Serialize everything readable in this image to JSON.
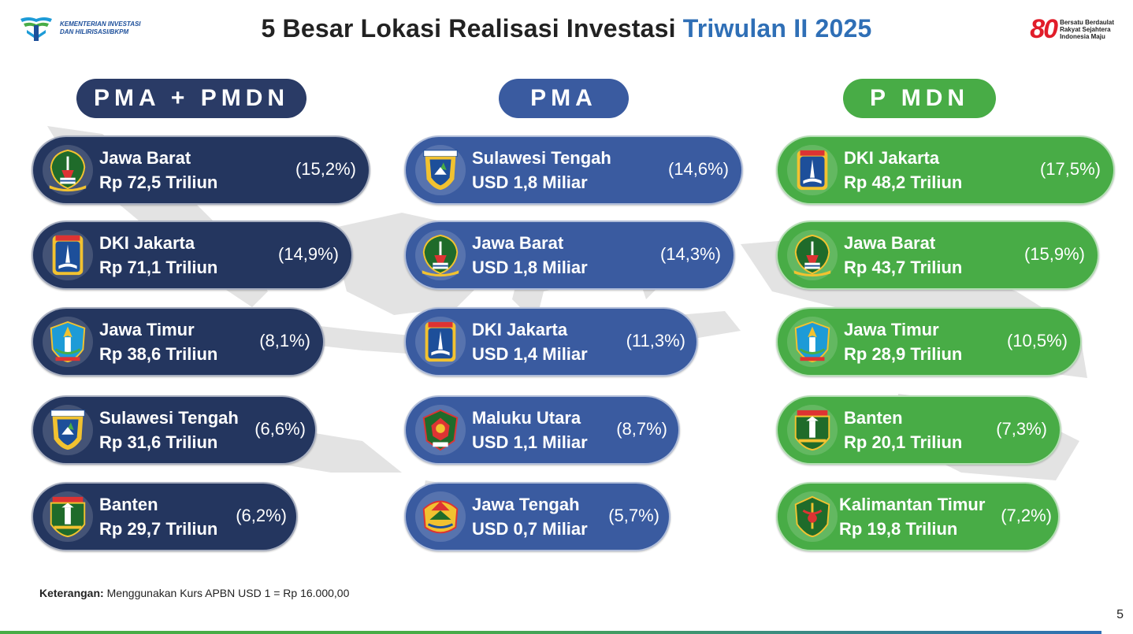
{
  "header": {
    "title_main": "5 Besar Lokasi Realisasi Investasi ",
    "title_accent": "Triwulan II 2025",
    "logo_left_line1": "KEMENTERIAN INVESTASI",
    "logo_left_line2": "DAN HILIRISASI/BKPM",
    "logo_right_number": "80",
    "logo_right_line1": "Bersatu Berdaulat",
    "logo_right_line2": "Rakyat Sejahtera",
    "logo_right_line3": "Indonesia Maju"
  },
  "columns": [
    {
      "heading": "PMA + PMDN",
      "items": [
        {
          "name": "Jawa Barat",
          "value": "Rp 72,5 Triliun",
          "pct": "(15,2%)",
          "emblem": "jawa-barat-emblem-icon"
        },
        {
          "name": "DKI Jakarta",
          "value": "Rp 71,1 Triliun",
          "pct": "(14,9%)",
          "emblem": "dki-jakarta-emblem-icon"
        },
        {
          "name": "Jawa Timur",
          "value": "Rp 38,6 Triliun",
          "pct": "(8,1%)",
          "emblem": "jawa-timur-emblem-icon"
        },
        {
          "name": "Sulawesi Tengah",
          "value": "Rp 31,6 Triliun",
          "pct": "(6,6%)",
          "emblem": "sulawesi-tengah-emblem-icon"
        },
        {
          "name": "Banten",
          "value": "Rp 29,7 Triliun",
          "pct": "(6,2%)",
          "emblem": "banten-emblem-icon"
        }
      ]
    },
    {
      "heading": "PMA",
      "items": [
        {
          "name": "Sulawesi Tengah",
          "value": "USD 1,8 Miliar",
          "pct": "(14,6%)",
          "emblem": "sulawesi-tengah-emblem-icon"
        },
        {
          "name": "Jawa Barat",
          "value": "USD 1,8 Miliar",
          "pct": "(14,3%)",
          "emblem": "jawa-barat-emblem-icon"
        },
        {
          "name": "DKI Jakarta",
          "value": "USD 1,4 Miliar",
          "pct": "(11,3%)",
          "emblem": "dki-jakarta-emblem-icon"
        },
        {
          "name": "Maluku Utara",
          "value": "USD 1,1 Miliar",
          "pct": "(8,7%)",
          "emblem": "maluku-utara-emblem-icon"
        },
        {
          "name": "Jawa Tengah",
          "value": "USD 0,7 Miliar",
          "pct": "(5,7%)",
          "emblem": "jawa-tengah-emblem-icon"
        }
      ]
    },
    {
      "heading": "P MDN",
      "items": [
        {
          "name": "DKI Jakarta",
          "value": "Rp 48,2 Triliun",
          "pct": "(17,5%)",
          "emblem": "dki-jakarta-emblem-icon"
        },
        {
          "name": "Jawa Barat",
          "value": "Rp 43,7 Triliun",
          "pct": "(15,9%)",
          "emblem": "jawa-barat-emblem-icon"
        },
        {
          "name": "Jawa Timur",
          "value": "Rp 28,9 Triliun",
          "pct": "(10,5%)",
          "emblem": "jawa-timur-emblem-icon"
        },
        {
          "name": "Banten",
          "value": "Rp 20,1 Triliun",
          "pct": "(7,3%)",
          "emblem": "banten-emblem-icon"
        },
        {
          "name": "Kalimantan Timur",
          "value": "Rp 19,8 Triliun",
          "pct": "(7,2%)",
          "emblem": "kalimantan-timur-emblem-icon"
        }
      ]
    }
  ],
  "footnote": {
    "label": "Keterangan:",
    "text": " Menggunakan Kurs APBN USD 1 = Rp 16.000,00"
  },
  "page_number": "5",
  "colors": {
    "dark_column": "#24365f",
    "blue_column": "#3a5ba0",
    "green_column": "#48ac46",
    "title_accent": "#2f6fb6",
    "logo_red": "#e11d2a"
  }
}
